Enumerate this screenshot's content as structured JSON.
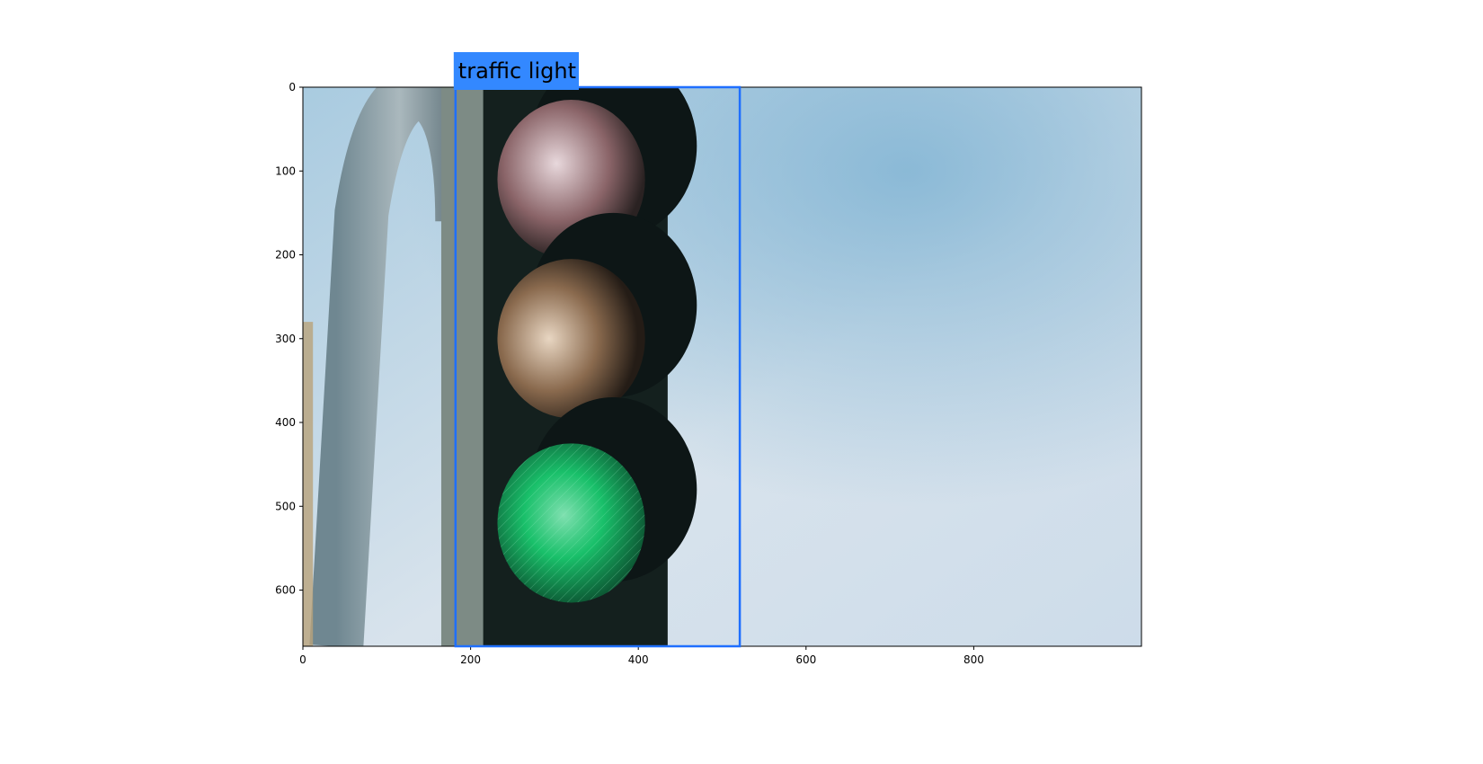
{
  "figure": {
    "image_extent": {
      "x_min": 0,
      "x_max": 1000,
      "y_min": 0,
      "y_max": 667
    },
    "x_ticks": [
      0,
      200,
      400,
      600,
      800
    ],
    "y_ticks": [
      0,
      100,
      200,
      300,
      400,
      500,
      600
    ]
  },
  "detections": [
    {
      "label": "traffic light",
      "box": {
        "x1": 182,
        "y1": 0,
        "x2": 521,
        "y2": 667
      },
      "color": "#1f6fff",
      "label_bg": "#3388ff"
    }
  ],
  "scene": {
    "sky_color_light": "#dde6ee",
    "sky_color_mid": "#b9d3e4",
    "sky_color_dark": "#7fb3d3",
    "signal_housing_color": "#14201e",
    "green_lamp_color": "#19c06a"
  }
}
